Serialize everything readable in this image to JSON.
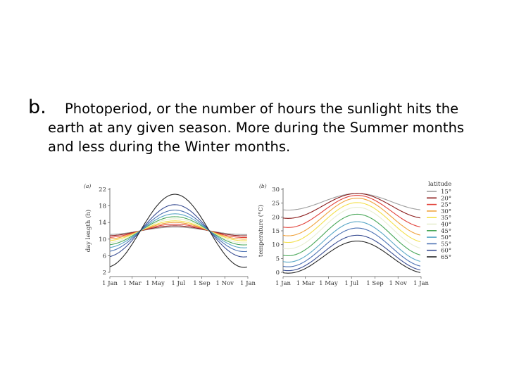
{
  "slide": {
    "bullet": "b.",
    "line1": "Photoperiod, or the number of hours the sunlight hits the",
    "line2": "earth at any given season. More during the Summer months",
    "line3": "and less during the Winter months."
  },
  "colors": {
    "latitudes": [
      "#9e9e9e",
      "#8b1a1a",
      "#e2433b",
      "#f0a23c",
      "#f3e04a",
      "#e8eed0",
      "#4aa85a",
      "#5aa7c6",
      "#4c72b4",
      "#3a4e93",
      "#262626"
    ]
  },
  "chart_data": [
    {
      "type": "line",
      "panel_label": "(a)",
      "ylabel": "day length (h)",
      "xticks": [
        "1 Jan",
        "1 Mar",
        "1 May",
        "1 Jul",
        "1 Sep",
        "1 Nov",
        "1 Jan"
      ],
      "yticks": [
        2,
        6,
        10,
        14,
        18,
        22
      ],
      "ylim": [
        2,
        22
      ],
      "x_day": [
        0,
        59,
        120,
        181,
        243,
        304,
        365
      ],
      "peak_day": 172,
      "series": [
        {
          "name": "15°",
          "mean": 12.0,
          "amplitude": 0.9
        },
        {
          "name": "20°",
          "mean": 12.0,
          "amplitude": 1.2
        },
        {
          "name": "25°",
          "mean": 12.0,
          "amplitude": 1.6
        },
        {
          "name": "30°",
          "mean": 12.0,
          "amplitude": 2.0
        },
        {
          "name": "35°",
          "mean": 12.0,
          "amplitude": 2.4
        },
        {
          "name": "40°",
          "mean": 12.0,
          "amplitude": 2.9
        },
        {
          "name": "45°",
          "mean": 12.0,
          "amplitude": 3.4
        },
        {
          "name": "50°",
          "mean": 12.0,
          "amplitude": 4.1
        },
        {
          "name": "55°",
          "mean": 12.0,
          "amplitude": 5.0
        },
        {
          "name": "60°",
          "mean": 12.0,
          "amplitude": 6.3
        },
        {
          "name": "65°",
          "mean": 12.0,
          "amplitude": 8.8
        }
      ]
    },
    {
      "type": "line",
      "panel_label": "(b)",
      "ylabel": "temperature (°C)",
      "xticks": [
        "1 Jan",
        "1 Mar",
        "1 May",
        "1 Jul",
        "1 Sep",
        "1 Nov",
        "1 Jan"
      ],
      "yticks": [
        0,
        5,
        10,
        15,
        20,
        25,
        30
      ],
      "ylim": [
        0,
        30
      ],
      "x_day": [
        0,
        59,
        120,
        181,
        243,
        304,
        365
      ],
      "peak_day": 196,
      "legend_title": "latitude",
      "legend_position": "right",
      "series": [
        {
          "name": "15°",
          "mean": 25.5,
          "amplitude": 3.0
        },
        {
          "name": "20°",
          "mean": 24.0,
          "amplitude": 4.5
        },
        {
          "name": "25°",
          "mean": 22.0,
          "amplitude": 5.8
        },
        {
          "name": "30°",
          "mean": 20.0,
          "amplitude": 6.8
        },
        {
          "name": "35°",
          "mean": 18.0,
          "amplitude": 7.2
        },
        {
          "name": "40°",
          "mean": 16.0,
          "amplitude": 7.5
        },
        {
          "name": "45°",
          "mean": 13.5,
          "amplitude": 7.5
        },
        {
          "name": "50°",
          "mean": 11.0,
          "amplitude": 7.3
        },
        {
          "name": "55°",
          "mean": 9.0,
          "amplitude": 7.0
        },
        {
          "name": "60°",
          "mean": 7.0,
          "amplitude": 6.4
        },
        {
          "name": "65°",
          "mean": 5.5,
          "amplitude": 5.8
        }
      ]
    }
  ]
}
